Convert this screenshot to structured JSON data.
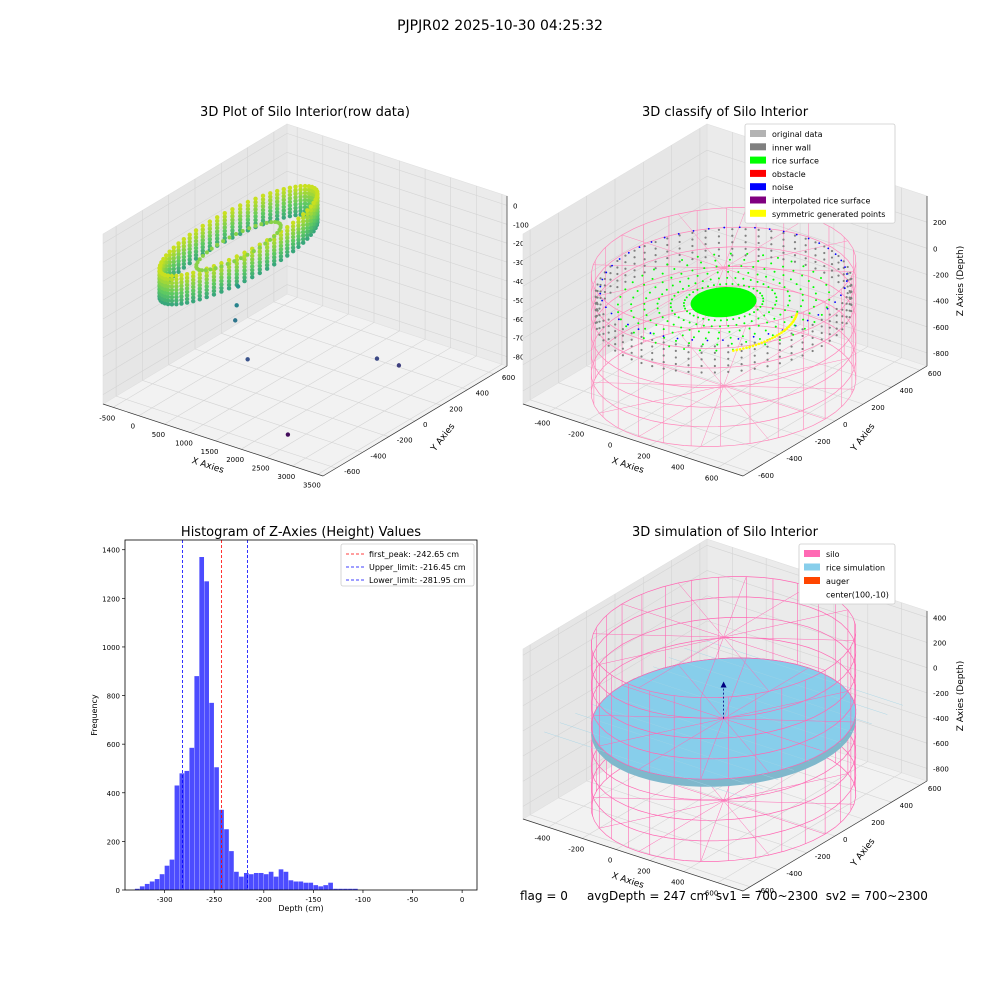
{
  "figure": {
    "suptitle": "PJPJR02 2025-10-30 04:25:32",
    "status_line": {
      "flag": "flag = 0",
      "avg_depth": "avgDepth = 247 cm",
      "sv1": "sv1 = 700~2300",
      "sv2": "sv2 = 700~2300"
    }
  },
  "chart_data": [
    {
      "type": "scatter",
      "projection": "3d",
      "title": "3D Plot of Silo Interior(row data)",
      "xlabel": "X Axies",
      "ylabel": "Y Axies",
      "zlabel": "Z Axies (Depth)",
      "xticks": [
        -500,
        0,
        500,
        1000,
        1500,
        2000,
        2500,
        3000,
        3500
      ],
      "yticks": [
        -600,
        -400,
        -200,
        0,
        200,
        400,
        600
      ],
      "zticks": [
        0,
        -100,
        -200,
        -300,
        -400,
        -500,
        -600,
        -700,
        -800
      ],
      "xlim": [
        -700,
        3600
      ],
      "ylim": [
        -700,
        700
      ],
      "zlim": [
        -850,
        50
      ],
      "colormap": "viridis (by depth)",
      "main_cloud": {
        "shape": "ring",
        "center": [
          150,
          0
        ],
        "radius": 560,
        "z_range": [
          -300,
          -150
        ]
      },
      "outliers": [
        {
          "x": 400,
          "y": -100,
          "z": -380
        },
        {
          "x": 500,
          "y": -150,
          "z": -450
        },
        {
          "x": 600,
          "y": -200,
          "z": -500
        },
        {
          "x": 1100,
          "y": -300,
          "z": -620
        },
        {
          "x": 2600,
          "y": 100,
          "z": -650
        },
        {
          "x": 2900,
          "y": 150,
          "z": -680
        },
        {
          "x": 2400,
          "y": -500,
          "z": -820
        }
      ],
      "grid": true
    },
    {
      "type": "scatter",
      "projection": "3d",
      "title": "3D classify of Silo Interior",
      "xlabel": "X Axies",
      "ylabel": "Y Axies",
      "zlabel": "Z Axies (Depth)",
      "xticks": [
        -400,
        -200,
        0,
        200,
        400,
        600
      ],
      "yticks": [
        -600,
        -400,
        -200,
        0,
        200,
        400,
        600
      ],
      "zticks": [
        200,
        0,
        -200,
        -400,
        -600,
        -800
      ],
      "zticks_top": 400,
      "xlim": [
        -550,
        750
      ],
      "ylim": [
        -650,
        650
      ],
      "zlim": [
        -900,
        400
      ],
      "legend_position": "top-right",
      "legend": [
        {
          "label": "original data",
          "color": "#b3b3b3"
        },
        {
          "label": "inner wall",
          "color": "#808080"
        },
        {
          "label": "rice surface",
          "color": "#00ff00"
        },
        {
          "label": "obstacle",
          "color": "#ff0000"
        },
        {
          "label": "noise",
          "color": "#0000ff"
        },
        {
          "label": "interpolated rice surface",
          "color": "#800080"
        },
        {
          "label": "symmetric generated points",
          "color": "#ffff00"
        }
      ],
      "silo_wireframe": {
        "center": [
          100,
          -10
        ],
        "radius": 600,
        "z_range": [
          -900,
          0
        ],
        "color": "#ff88bb"
      },
      "inner_wall": {
        "radius": 580,
        "z_range": [
          -350,
          -150
        ]
      },
      "rice_surface": {
        "radius": 350,
        "z": -260
      },
      "grid": true
    },
    {
      "type": "bar",
      "subtype": "histogram",
      "title": "Histogram of Z-Axies (Height) Values",
      "xlabel": "Depth (cm)",
      "ylabel": "Frequency",
      "xlim": [
        -340,
        15
      ],
      "ylim": [
        0,
        1440
      ],
      "xticks": [
        -300,
        -250,
        -200,
        -150,
        -100,
        -50,
        0
      ],
      "yticks": [
        0,
        200,
        400,
        600,
        800,
        1000,
        1200,
        1400
      ],
      "bar_color": "#4c4cff",
      "bin_width": 5,
      "bin_start": -330,
      "counts": [
        5,
        15,
        25,
        35,
        45,
        65,
        100,
        125,
        430,
        480,
        490,
        585,
        880,
        1370,
        1270,
        770,
        505,
        330,
        250,
        160,
        75,
        55,
        70,
        65,
        70,
        70,
        65,
        75,
        55,
        85,
        75,
        40,
        35,
        35,
        30,
        30,
        20,
        15,
        20,
        30,
        5,
        5,
        5,
        5,
        5
      ],
      "vlines": [
        {
          "label": "first_peak: -242.65 cm",
          "x": -242.65,
          "color": "#ff0000"
        },
        {
          "label": "Upper_limit: -216.45 cm",
          "x": -216.45,
          "color": "#0000ff"
        },
        {
          "label": "Lower_limit: -281.95 cm",
          "x": -281.95,
          "color": "#0000ff"
        }
      ],
      "legend_position": "top-right",
      "grid": false
    },
    {
      "type": "scatter",
      "projection": "3d",
      "title": "3D simulation of Silo Interior",
      "xlabel": "X Axies",
      "ylabel": "Y Axies",
      "zlabel": "Z Axies (Depth)",
      "xticks": [
        -400,
        -200,
        0,
        200,
        400,
        600
      ],
      "yticks": [
        -600,
        -400,
        -200,
        0,
        200,
        400,
        600
      ],
      "zticks": [
        400,
        200,
        0,
        -200,
        -400,
        -600,
        -800
      ],
      "xlim": [
        -550,
        750
      ],
      "ylim": [
        -650,
        650
      ],
      "zlim": [
        -900,
        450
      ],
      "legend_position": "top-right",
      "legend": [
        {
          "label": "silo",
          "color": "#ff69b4"
        },
        {
          "label": "rice simulation",
          "color": "#87ceeb"
        },
        {
          "label": "auger",
          "color": "#ff4500"
        },
        {
          "label": "center(100,-10)",
          "color": ""
        }
      ],
      "silo_wireframe": {
        "center": [
          100,
          -10
        ],
        "radius": 600,
        "z_range": [
          -900,
          400
        ],
        "color": "#ff69b4"
      },
      "rice_surface": {
        "radius": 600,
        "z": -247,
        "color": "#87ceeb"
      },
      "center_marker": {
        "x": 100,
        "y": -10
      },
      "grid": true
    }
  ]
}
